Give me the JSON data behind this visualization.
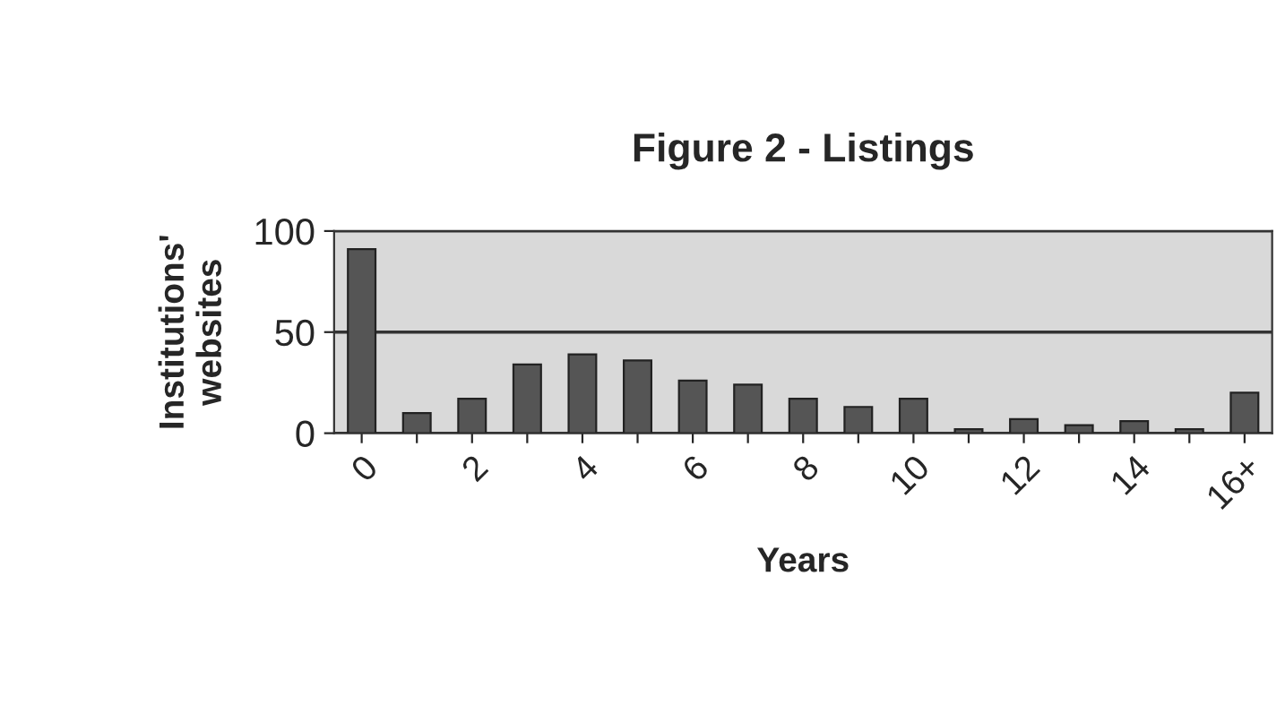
{
  "chart_data": {
    "type": "bar",
    "title": "Figure 2 - Listings",
    "xlabel": "Years",
    "ylabel": "Institutions'\nwebsites",
    "categories": [
      "0",
      null,
      "2",
      null,
      "4",
      null,
      "6",
      null,
      "8",
      null,
      "10",
      null,
      "12",
      null,
      "14",
      null,
      "16+"
    ],
    "values": [
      91,
      10,
      17,
      34,
      39,
      36,
      26,
      24,
      17,
      13,
      17,
      2,
      7,
      4,
      6,
      2,
      20
    ],
    "color": "#555555",
    "ylim": [
      0,
      100
    ],
    "yticks": [
      0,
      50,
      100
    ],
    "grid": "y",
    "legend": false
  }
}
